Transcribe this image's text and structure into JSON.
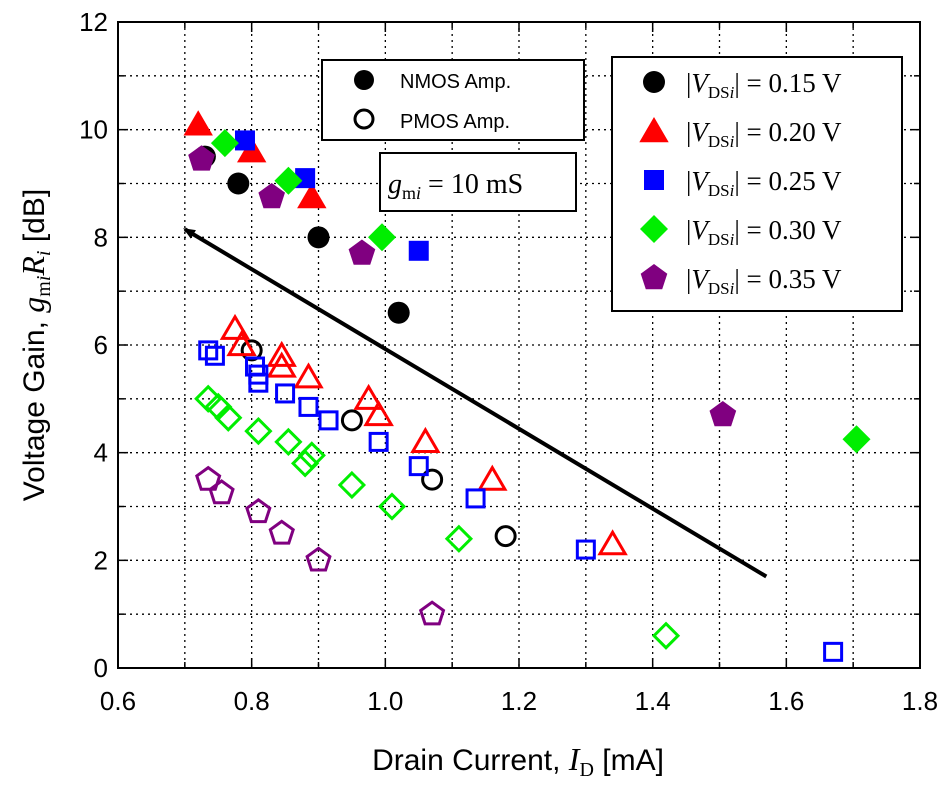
{
  "chart_data": {
    "type": "scatter",
    "xlabel": "Drain Current, I_D [mA]",
    "ylabel": "Voltage Gain, g_mi R_i [dB]",
    "xlim": [
      0.6,
      1.8
    ],
    "ylim": [
      0,
      12
    ],
    "xticks": [
      "0.6",
      "0.8",
      "1.0",
      "1.2",
      "1.4",
      "1.6",
      "1.8"
    ],
    "yticks": [
      "0",
      "2",
      "4",
      "6",
      "8",
      "10",
      "12"
    ],
    "grid": true,
    "annotation": {
      "text": "g_mi = 10 mS"
    },
    "arrow": {
      "from": [
        1.57,
        1.7
      ],
      "to": [
        0.7,
        8.15
      ]
    },
    "fill_legend": [
      {
        "label": "NMOS Amp.",
        "filled": true
      },
      {
        "label": "PMOS Amp.",
        "filled": false
      }
    ],
    "series": [
      {
        "name": "|V_DSi| = 0.15 V",
        "marker": "circle",
        "color": "#000000",
        "nmos": {
          "x": [
            0.73,
            0.78,
            0.9,
            1.02
          ],
          "y": [
            9.5,
            9.0,
            8.0,
            6.6
          ]
        },
        "pmos": {
          "x": [
            0.8,
            0.95,
            1.07,
            1.18
          ],
          "y": [
            5.9,
            4.6,
            3.5,
            2.45
          ]
        }
      },
      {
        "name": "|V_DSi| = 0.20 V",
        "marker": "triangle",
        "color": "#ff0000",
        "nmos": {
          "x": [
            0.72,
            0.8,
            0.89
          ],
          "y": [
            10.1,
            9.6,
            8.75
          ]
        },
        "pmos": {
          "x": [
            0.775,
            0.785,
            0.845,
            0.845,
            0.885,
            0.975,
            0.99,
            1.06,
            1.16,
            1.34
          ],
          "y": [
            6.3,
            6.0,
            5.8,
            5.6,
            5.4,
            5.0,
            4.7,
            4.2,
            3.5,
            2.3
          ]
        }
      },
      {
        "name": "|V_DSi| = 0.25 V",
        "marker": "square",
        "color": "#0000ff",
        "nmos": {
          "x": [
            0.79,
            0.88,
            1.05
          ],
          "y": [
            9.8,
            9.1,
            7.75
          ]
        },
        "pmos": {
          "x": [
            0.735,
            0.745,
            0.805,
            0.81,
            0.81,
            0.85,
            0.885,
            0.915,
            0.99,
            1.05,
            1.135,
            1.3,
            1.67
          ],
          "y": [
            5.9,
            5.8,
            5.6,
            5.45,
            5.3,
            5.1,
            4.85,
            4.6,
            4.2,
            3.75,
            3.15,
            2.2,
            0.3
          ]
        }
      },
      {
        "name": "|V_DSi| = 0.30 V",
        "marker": "diamond",
        "color": "#00ee00",
        "nmos": {
          "x": [
            0.76,
            0.855,
            0.995,
            1.705
          ],
          "y": [
            9.75,
            9.05,
            8.0,
            4.25
          ]
        },
        "pmos": {
          "x": [
            0.735,
            0.75,
            0.765,
            0.81,
            0.855,
            0.88,
            0.89,
            0.95,
            1.01,
            1.11,
            1.42
          ],
          "y": [
            5.0,
            4.85,
            4.65,
            4.4,
            4.2,
            3.8,
            3.95,
            3.4,
            3.0,
            2.4,
            0.6
          ]
        }
      },
      {
        "name": "|V_DSi| = 0.35 V",
        "marker": "pentagon",
        "color": "#800080",
        "nmos": {
          "x": [
            0.725,
            0.83,
            0.965,
            1.505
          ],
          "y": [
            9.45,
            8.75,
            7.7,
            4.7
          ]
        },
        "pmos": {
          "x": [
            0.735,
            0.755,
            0.81,
            0.845,
            0.9,
            1.07
          ],
          "y": [
            3.5,
            3.25,
            2.9,
            2.5,
            2.0,
            1.0
          ]
        }
      }
    ]
  }
}
